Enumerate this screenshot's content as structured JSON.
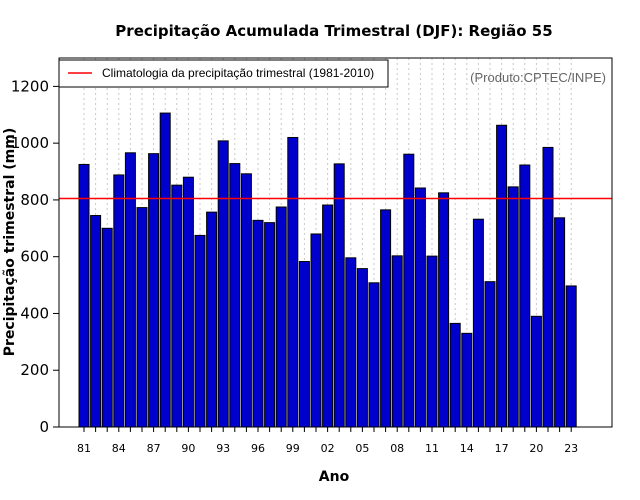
{
  "chart_data": {
    "type": "bar",
    "title": "Precipitação Acumulada Trimestral (DJF): Região 55",
    "xlabel": "Ano",
    "ylabel": "Precipitação trimestral (mm)",
    "ylim": [
      0,
      1300
    ],
    "yticks": [
      0,
      200,
      400,
      600,
      800,
      1000,
      1200
    ],
    "grid": "vertical dotted",
    "legend_position": "top-left",
    "source_note": "(Produto:CPTEC/INPE)",
    "categories": [
      "81",
      "82",
      "83",
      "84",
      "85",
      "86",
      "87",
      "88",
      "89",
      "90",
      "91",
      "92",
      "93",
      "94",
      "95",
      "96",
      "97",
      "98",
      "99",
      "00",
      "01",
      "02",
      "03",
      "04",
      "05",
      "06",
      "07",
      "08",
      "09",
      "10",
      "11",
      "12",
      "13",
      "14",
      "15",
      "16",
      "17",
      "18",
      "19",
      "20",
      "21",
      "22",
      "23"
    ],
    "xtick_labels": [
      "81",
      "84",
      "87",
      "90",
      "93",
      "96",
      "99",
      "02",
      "05",
      "08",
      "11",
      "14",
      "17",
      "20",
      "23"
    ],
    "series": [
      {
        "name": "Precipitação trimestral",
        "color": "#0000cd",
        "values": [
          925,
          745,
          700,
          888,
          966,
          773,
          963,
          1106,
          852,
          880,
          675,
          757,
          1008,
          928,
          892,
          728,
          720,
          775,
          1020,
          583,
          680,
          782,
          927,
          596,
          558,
          508,
          765,
          603,
          961,
          842,
          602,
          825,
          365,
          330,
          732,
          512,
          1063,
          846,
          923,
          390,
          985,
          737,
          497
        ]
      }
    ],
    "reference_line": {
      "label": "Climatologia da precipitação trimestral (1981-2010)",
      "value": 805,
      "color": "#ff0000"
    }
  }
}
